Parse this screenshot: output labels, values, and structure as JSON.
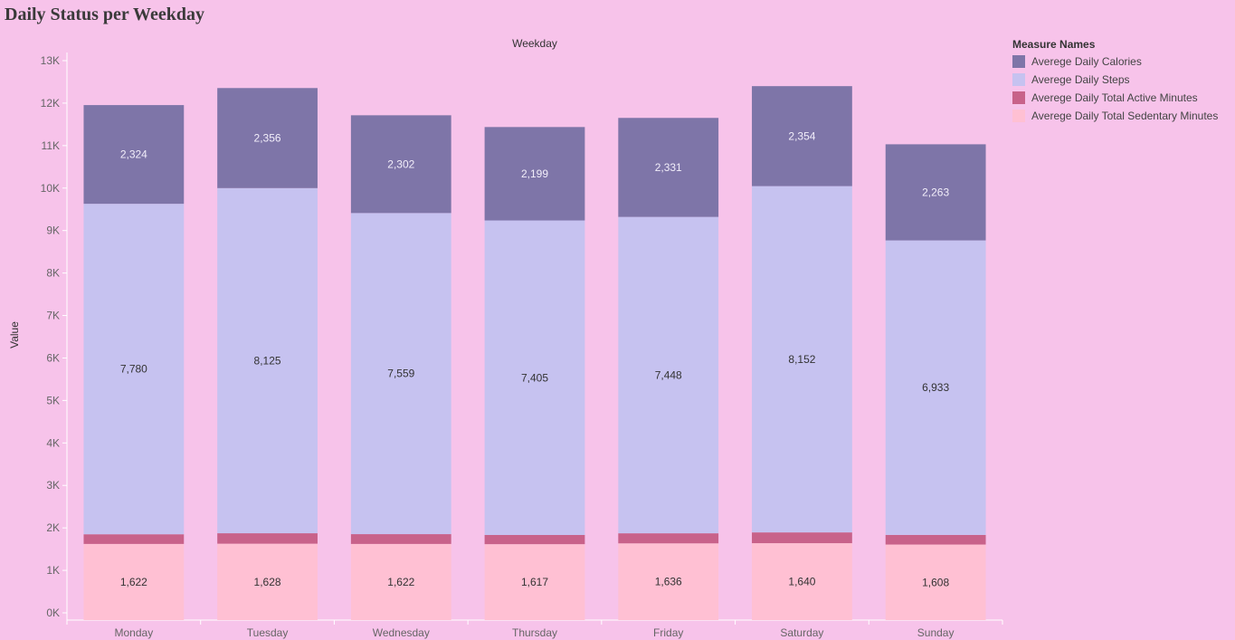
{
  "title": "Daily Status per Weekday",
  "chart_data": {
    "type": "bar",
    "stacked": true,
    "header": "Weekday",
    "xlabel": "",
    "ylabel": "Value",
    "ylim": [
      0,
      13000
    ],
    "yticks": [
      0,
      1000,
      2000,
      3000,
      4000,
      5000,
      6000,
      7000,
      8000,
      9000,
      10000,
      11000,
      12000,
      13000
    ],
    "ytick_labels": [
      "0K",
      "1K",
      "2K",
      "3K",
      "4K",
      "5K",
      "6K",
      "7K",
      "8K",
      "9K",
      "10K",
      "11K",
      "12K",
      "13K"
    ],
    "categories": [
      "Monday",
      "Tuesday",
      "Wednesday",
      "Thursday",
      "Friday",
      "Saturday",
      "Sunday"
    ],
    "series": [
      {
        "name": "Averege Daily Total Sedentary Minutes",
        "color": "#ffc0d3",
        "label_color": "#333333",
        "labels_shown": true,
        "values": [
          1622,
          1628,
          1622,
          1617,
          1636,
          1640,
          1608
        ],
        "labels": [
          "1,622",
          "1,628",
          "1,622",
          "1,617",
          "1,636",
          "1,640",
          "1,608"
        ]
      },
      {
        "name": "Averege Daily Total Active Minutes",
        "color": "#c8628a",
        "label_color": "#ffffff",
        "labels_shown": false,
        "values": [
          228,
          246,
          231,
          216,
          237,
          254,
          227
        ]
      },
      {
        "name": "Averege Daily Steps",
        "color": "#c6c2f0",
        "label_color": "#333333",
        "labels_shown": true,
        "values": [
          7780,
          8125,
          7559,
          7405,
          7448,
          8152,
          6933
        ],
        "labels": [
          "7,780",
          "8,125",
          "7,559",
          "7,405",
          "7,448",
          "8,152",
          "6,933"
        ]
      },
      {
        "name": "Averege Daily Calories",
        "color": "#7e75a8",
        "label_color": "#f2eefa",
        "labels_shown": true,
        "values": [
          2324,
          2356,
          2302,
          2199,
          2331,
          2354,
          2263
        ],
        "labels": [
          "2,324",
          "2,356",
          "2,302",
          "2,199",
          "2,331",
          "2,354",
          "2,263"
        ]
      }
    ]
  },
  "legend": {
    "title": "Measure Names",
    "items": [
      {
        "label": "Averege Daily Calories",
        "color": "#7e75a8"
      },
      {
        "label": "Averege Daily Steps",
        "color": "#c6c2f0"
      },
      {
        "label": "Averege Daily Total Active Minutes",
        "color": "#c8628a"
      },
      {
        "label": "Averege Daily Total Sedentary Minutes",
        "color": "#ffc0d3"
      }
    ]
  }
}
